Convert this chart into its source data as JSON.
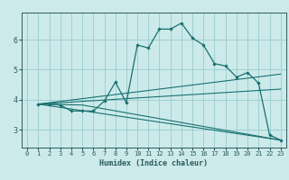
{
  "xlabel": "Humidex (Indice chaleur)",
  "bg_color": "#cceaea",
  "grid_color": "#99cccc",
  "line_color": "#1a7070",
  "xlim": [
    -0.5,
    23.5
  ],
  "ylim": [
    2.4,
    6.9
  ],
  "yticks": [
    3,
    4,
    5,
    6
  ],
  "xticks": [
    0,
    1,
    2,
    3,
    4,
    5,
    6,
    7,
    8,
    9,
    10,
    11,
    12,
    13,
    14,
    15,
    16,
    17,
    18,
    19,
    20,
    21,
    22,
    23
  ],
  "series": [
    {
      "x": [
        1,
        2,
        3,
        4,
        5,
        6,
        7,
        8,
        9,
        10,
        11,
        12,
        13,
        14,
        15,
        16,
        17,
        18,
        19,
        20,
        21,
        22,
        23
      ],
      "y": [
        3.85,
        3.85,
        3.82,
        3.62,
        3.62,
        3.62,
        3.95,
        4.58,
        3.9,
        5.82,
        5.72,
        6.35,
        6.35,
        6.55,
        6.05,
        5.82,
        5.2,
        5.12,
        4.75,
        4.9,
        4.55,
        2.82,
        2.65
      ],
      "markers": true
    },
    {
      "x": [
        1,
        5,
        23
      ],
      "y": [
        3.85,
        3.82,
        2.65
      ],
      "markers": false
    },
    {
      "x": [
        1,
        23
      ],
      "y": [
        3.85,
        4.85
      ],
      "markers": false
    },
    {
      "x": [
        1,
        23
      ],
      "y": [
        3.85,
        4.35
      ],
      "markers": false
    },
    {
      "x": [
        1,
        23
      ],
      "y": [
        3.85,
        2.65
      ],
      "markers": false
    }
  ],
  "tick_labelsize": 5,
  "xlabel_fontsize": 6,
  "xlabel_fontweight": "bold"
}
